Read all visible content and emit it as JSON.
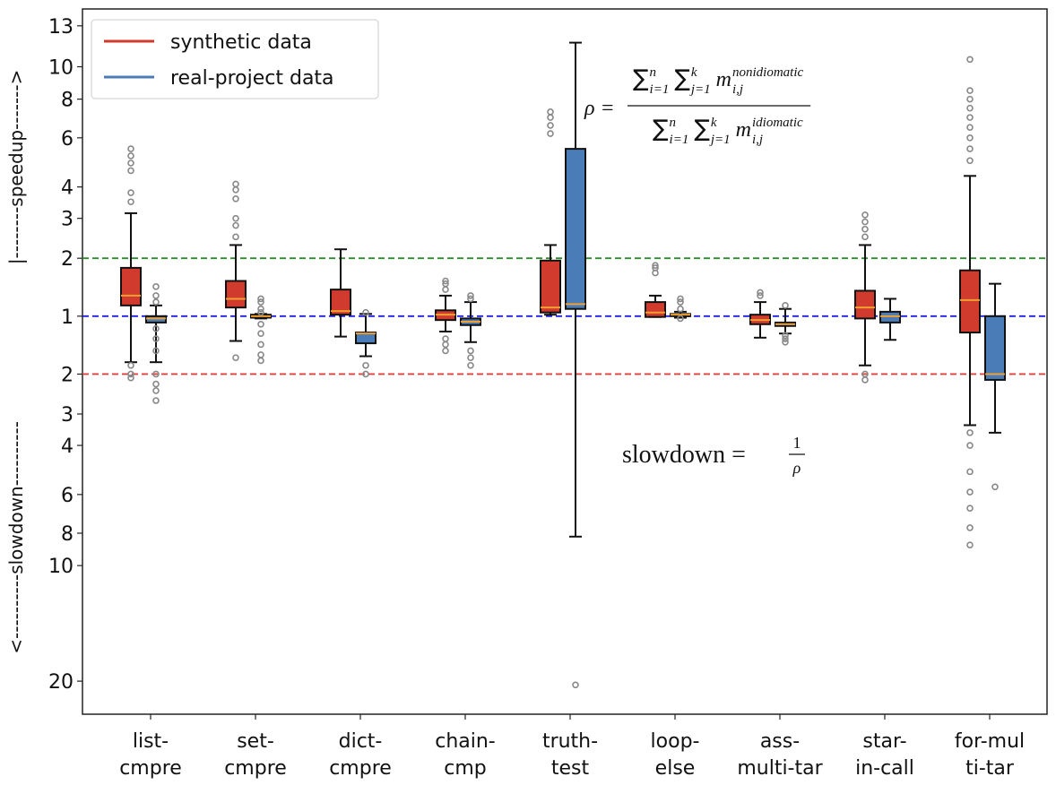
{
  "chart_data": {
    "type": "box",
    "y_label_top": "|--------speedup------->",
    "y_label_bottom": "<----------slowdown----------",
    "categories": [
      [
        "list-",
        "cmpre"
      ],
      [
        "set-",
        "cmpre"
      ],
      [
        "dict-",
        "cmpre"
      ],
      [
        "chain-",
        "cmp"
      ],
      [
        "truth-",
        "test"
      ],
      [
        "loop-",
        "else"
      ],
      [
        "ass-",
        "multi-tar"
      ],
      [
        "star-",
        "in-call"
      ],
      [
        "for-mul",
        "ti-tar"
      ]
    ],
    "yscale": {
      "type": "symmetric-power",
      "exponent": 0.3
    },
    "ylim": [
      0.042,
      14.4
    ],
    "yticks": [
      13,
      10,
      8,
      6,
      4,
      3,
      2,
      1,
      {
        "value": 0.5,
        "label": "2"
      },
      {
        "value": 0.3333,
        "label": "3"
      },
      {
        "value": 0.25,
        "label": "4"
      },
      {
        "value": 0.1667,
        "label": "6"
      },
      {
        "value": 0.125,
        "label": "8"
      },
      {
        "value": 0.1,
        "label": "10"
      },
      {
        "value": 0.05,
        "label": "20"
      }
    ],
    "hlines": [
      {
        "value": 2,
        "color": "#2e8b2e"
      },
      {
        "value": 1,
        "color": "#1f1fe6"
      },
      {
        "value": 0.5,
        "color": "#e0403a"
      }
    ],
    "legend": "upper left",
    "series": [
      {
        "name": "synthetic data",
        "color": "#d13b2d",
        "boxes": [
          {
            "whislo": 0.57,
            "q1": 1.15,
            "med": 1.3,
            "q3": 1.8,
            "whishi": 3.15,
            "fliers": [
              3.5,
              3.8,
              4.6,
              4.9,
              5.2,
              5.5,
              0.55,
              0.5,
              0.48
            ]
          },
          {
            "whislo": 0.73,
            "q1": 1.12,
            "med": 1.25,
            "q3": 1.55,
            "whishi": 2.3,
            "fliers": [
              2.5,
              2.8,
              3.0,
              3.6,
              3.9,
              4.1,
              0.6
            ]
          },
          {
            "whislo": 0.77,
            "q1": 1.02,
            "med": 1.07,
            "q3": 1.4,
            "whishi": 2.2,
            "fliers": []
          },
          {
            "whislo": 0.82,
            "q1": 0.95,
            "med": 1.02,
            "q3": 1.08,
            "whishi": 1.3,
            "fliers": [
              1.4,
              1.5,
              1.55,
              0.75,
              0.7,
              0.65
            ]
          },
          {
            "whislo": 1.02,
            "q1": 1.05,
            "med": 1.12,
            "q3": 1.95,
            "whishi": 2.3,
            "fliers": [
              6.2,
              6.6,
              7.0,
              7.3
            ]
          },
          {
            "whislo": 0.99,
            "q1": 0.99,
            "med": 1.05,
            "q3": 1.2,
            "whishi": 1.3,
            "fliers": [
              1.7,
              1.8,
              1.85
            ]
          },
          {
            "whislo": 0.76,
            "q1": 0.9,
            "med": 0.95,
            "q3": 1.02,
            "whishi": 1.2,
            "fliers": [
              1.3,
              1.35
            ]
          },
          {
            "whislo": 0.55,
            "q1": 0.97,
            "med": 1.12,
            "q3": 1.38,
            "whishi": 2.3,
            "fliers": [
              2.5,
              2.7,
              2.9,
              3.1,
              0.5,
              0.47
            ]
          },
          {
            "whislo": 0.3,
            "q1": 0.81,
            "med": 1.23,
            "q3": 1.75,
            "whishi": 4.4,
            "fliers": [
              5,
              5.5,
              6,
              6.5,
              7,
              7.5,
              8,
              8.5,
              10.5,
              0.28,
              0.25,
              0.2,
              0.17,
              0.15,
              0.13,
              0.115
            ]
          }
        ]
      },
      {
        "name": "real-project data",
        "color": "#4a7cb8",
        "boxes": [
          {
            "whislo": 0.57,
            "q1": 0.92,
            "med": 0.97,
            "q3": 1.0,
            "whishi": 1.15,
            "fliers": [
              1.2,
              1.3,
              1.45,
              0.85,
              0.75,
              0.65,
              0.5,
              0.45,
              0.42,
              0.38
            ]
          },
          {
            "whislo": 0.97,
            "q1": 0.98,
            "med": 1.0,
            "q3": 1.02,
            "whishi": 1.03,
            "fliers": [
              1.05,
              1.1,
              1.2,
              1.25,
              0.9,
              0.8,
              0.7,
              0.62,
              0.58
            ]
          },
          {
            "whislo": 0.61,
            "q1": 0.71,
            "med": 0.8,
            "q3": 0.81,
            "whishi": 1.03,
            "fliers": [
              1.05,
              0.55,
              0.5
            ]
          },
          {
            "whislo": 0.72,
            "q1": 0.89,
            "med": 0.93,
            "q3": 0.97,
            "whishi": 1.2,
            "fliers": [
              1.25,
              1.3,
              0.65,
              0.6,
              0.55
            ]
          },
          {
            "whislo": 0.122,
            "q1": 1.1,
            "med": 1.17,
            "q3": 5.5,
            "whishi": 11.7,
            "fliers": [
              0.049
            ]
          },
          {
            "whislo": 0.98,
            "q1": 1.0,
            "med": 1.02,
            "q3": 1.03,
            "whishi": 1.06,
            "fliers": [
              1.1,
              1.2,
              1.25,
              0.97
            ]
          },
          {
            "whislo": 0.8,
            "q1": 0.88,
            "med": 0.9,
            "q3": 0.92,
            "whishi": 1.1,
            "fliers": [
              1.15,
              0.78,
              0.75,
              0.72
            ]
          },
          {
            "whislo": 0.74,
            "q1": 0.92,
            "med": 1.0,
            "q3": 1.06,
            "whishi": 1.25,
            "fliers": []
          },
          {
            "whislo": 0.28,
            "q1": 0.47,
            "med": 0.5,
            "q3": 1.0,
            "whishi": 1.5,
            "fliers": [
              0.177
            ]
          }
        ]
      }
    ],
    "annotations": {
      "rho": {
        "lhs": "ρ =",
        "numerator": [
          {
            "base": "∑",
            "sup": "n",
            "sub": "i=1"
          },
          {
            "base": "∑",
            "sup": "k",
            "sub": "j=1"
          },
          {
            "base": "m",
            "sup": "nonidiomatic",
            "sub": "i,j"
          }
        ],
        "denominator": [
          {
            "base": "∑",
            "sup": "n",
            "sub": "i=1"
          },
          {
            "base": "∑",
            "sup": "k",
            "sub": "j=1"
          },
          {
            "base": "m",
            "sup": "idiomatic",
            "sub": "i,j"
          }
        ]
      },
      "slowdown": {
        "lhs": "slowdown =",
        "numerator": "1",
        "denominator": "ρ"
      }
    }
  }
}
